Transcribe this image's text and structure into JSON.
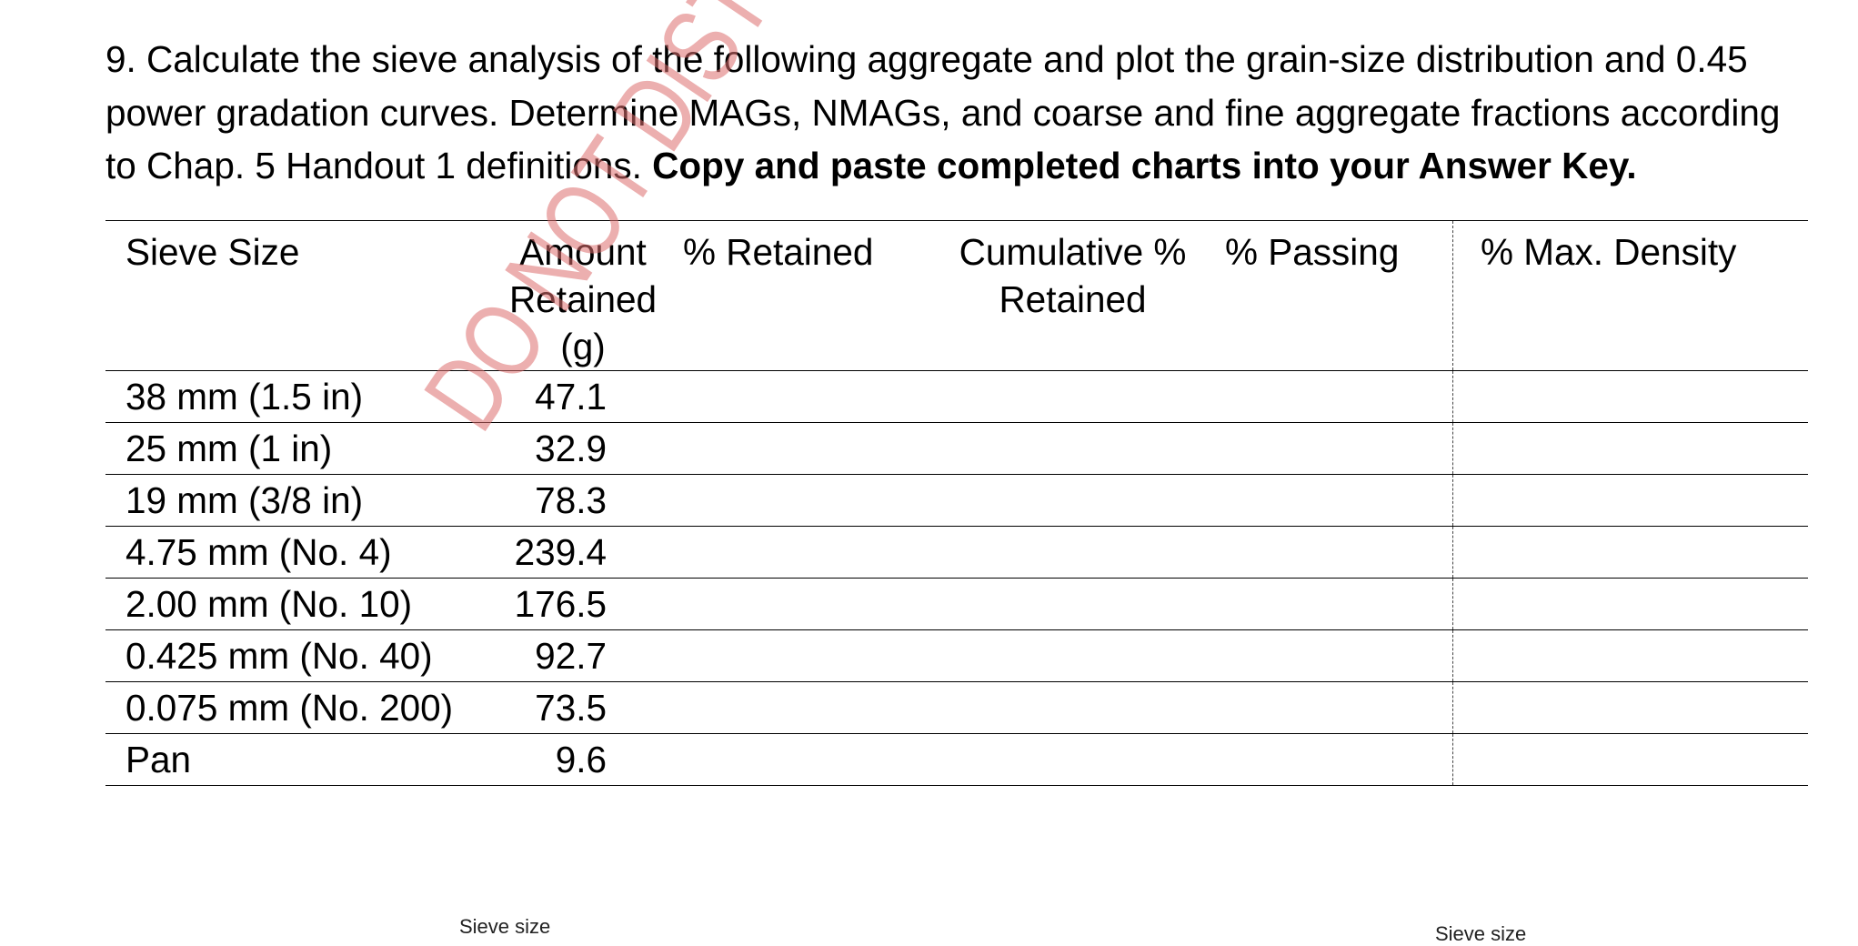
{
  "question": {
    "text": "9.  Calculate the sieve analysis of the following aggregate and plot the grain-size distribution and 0.45 power gradation curves.  Determine MAGs, NMAGs, and coarse and fine aggregate fractions according to Chap. 5 Handout 1 definitions.  ",
    "bold_text": "Copy and paste completed charts into your Answer Key."
  },
  "table": {
    "headers": {
      "sieve_size": "Sieve Size",
      "amount_line1": "Amount",
      "amount_line2": "Retained (g)",
      "retained": "% Retained",
      "cumulative_line1": "Cumulative %",
      "cumulative_line2": "Retained",
      "passing": "% Passing",
      "max_density": "% Max. Density"
    },
    "rows": [
      {
        "size": "38 mm (1.5 in)",
        "amount": "47.1"
      },
      {
        "size": "25 mm (1 in)",
        "amount": "32.9"
      },
      {
        "size": "19 mm (3/8 in)",
        "amount": "78.3"
      },
      {
        "size": "4.75 mm (No. 4)",
        "amount": "239.4"
      },
      {
        "size": "2.00 mm (No. 10)",
        "amount": "176.5"
      },
      {
        "size": "0.425 mm (No. 40)",
        "amount": "92.7"
      },
      {
        "size": "0.075 mm (No. 200)",
        "amount": "73.5"
      },
      {
        "size": "Pan",
        "amount": "9.6"
      }
    ]
  },
  "watermark": "DO NOT DISTRIBUTE or POST - THANK YOU",
  "chart_labels": {
    "left_xlabel": "Sieve size",
    "right_xlabel": "Sieve size"
  },
  "colors": {
    "watermark": "#e07a7a",
    "text": "#000000"
  }
}
